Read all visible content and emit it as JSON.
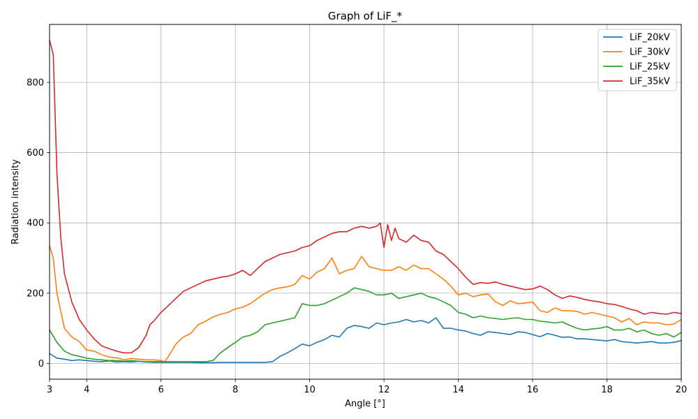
{
  "chart_data": {
    "type": "line",
    "title": "Graph of LiF_*",
    "xlabel": "Angle [°]",
    "ylabel": "Radiation intensity",
    "xlim": [
      3,
      20
    ],
    "ylim": [
      -45,
      965
    ],
    "xticks": [
      4,
      6,
      8,
      10,
      12,
      14,
      16,
      18,
      20
    ],
    "yticks": [
      0,
      200,
      400,
      600,
      800
    ],
    "grid": true,
    "legend_position": "top-right",
    "series": [
      {
        "name": "LiF_20kV",
        "color": "#1f77b4",
        "x": [
          3.0,
          3.2,
          3.4,
          3.6,
          3.8,
          4.0,
          4.2,
          4.4,
          4.6,
          4.8,
          5.0,
          5.2,
          5.4,
          5.6,
          5.8,
          6.0,
          6.2,
          6.4,
          6.6,
          6.8,
          7.0,
          7.2,
          7.4,
          7.6,
          7.8,
          8.0,
          8.2,
          8.4,
          8.6,
          8.8,
          9.0,
          9.2,
          9.4,
          9.6,
          9.8,
          10.0,
          10.2,
          10.4,
          10.6,
          10.8,
          11.0,
          11.2,
          11.4,
          11.6,
          11.8,
          12.0,
          12.2,
          12.4,
          12.6,
          12.8,
          13.0,
          13.2,
          13.4,
          13.6,
          13.8,
          14.0,
          14.2,
          14.4,
          14.6,
          14.8,
          15.0,
          15.2,
          15.4,
          15.6,
          15.8,
          16.0,
          16.2,
          16.4,
          16.6,
          16.8,
          17.0,
          17.2,
          17.4,
          17.6,
          17.8,
          18.0,
          18.2,
          18.4,
          18.6,
          18.8,
          19.0,
          19.2,
          19.4,
          19.6,
          19.8,
          20.0
        ],
        "y": [
          28,
          15,
          12,
          8,
          10,
          8,
          6,
          5,
          7,
          4,
          5,
          4,
          6,
          4,
          3,
          3,
          3,
          3,
          3,
          3,
          2,
          2,
          2,
          3,
          3,
          3,
          3,
          3,
          3,
          3,
          5,
          20,
          30,
          42,
          55,
          50,
          60,
          68,
          80,
          75,
          100,
          108,
          105,
          100,
          115,
          110,
          115,
          118,
          125,
          118,
          122,
          115,
          130,
          100,
          100,
          95,
          92,
          85,
          80,
          90,
          88,
          85,
          82,
          90,
          88,
          82,
          76,
          85,
          80,
          74,
          75,
          70,
          70,
          68,
          66,
          64,
          68,
          62,
          60,
          58,
          60,
          62,
          58,
          58,
          60,
          65
        ]
      },
      {
        "name": "LiF_30kV",
        "color": "#ff7f0e",
        "x": [
          3.0,
          3.1,
          3.2,
          3.4,
          3.6,
          3.8,
          4.0,
          4.2,
          4.4,
          4.6,
          4.8,
          5.0,
          5.2,
          5.4,
          5.6,
          5.8,
          6.0,
          6.1,
          6.2,
          6.4,
          6.6,
          6.8,
          7.0,
          7.2,
          7.4,
          7.6,
          7.8,
          8.0,
          8.2,
          8.4,
          8.6,
          8.8,
          9.0,
          9.2,
          9.4,
          9.6,
          9.8,
          10.0,
          10.2,
          10.4,
          10.6,
          10.8,
          11.0,
          11.2,
          11.4,
          11.6,
          11.8,
          12.0,
          12.2,
          12.4,
          12.6,
          12.8,
          13.0,
          13.2,
          13.4,
          13.6,
          13.8,
          14.0,
          14.2,
          14.4,
          14.6,
          14.8,
          15.0,
          15.2,
          15.4,
          15.6,
          15.8,
          16.0,
          16.2,
          16.4,
          16.6,
          16.8,
          17.0,
          17.2,
          17.4,
          17.6,
          17.8,
          18.0,
          18.2,
          18.4,
          18.6,
          18.8,
          19.0,
          19.2,
          19.4,
          19.6,
          19.8,
          20.0
        ],
        "y": [
          335,
          300,
          200,
          100,
          75,
          62,
          38,
          35,
          25,
          18,
          16,
          10,
          14,
          12,
          10,
          10,
          8,
          5,
          20,
          55,
          75,
          85,
          110,
          120,
          132,
          140,
          145,
          155,
          160,
          170,
          185,
          200,
          210,
          215,
          218,
          225,
          250,
          240,
          260,
          270,
          300,
          255,
          265,
          270,
          305,
          275,
          270,
          265,
          265,
          275,
          265,
          280,
          270,
          270,
          255,
          240,
          220,
          195,
          200,
          190,
          195,
          198,
          175,
          165,
          178,
          170,
          172,
          175,
          150,
          145,
          158,
          150,
          150,
          148,
          140,
          145,
          140,
          135,
          130,
          118,
          128,
          110,
          118,
          115,
          115,
          110,
          112,
          125
        ]
      },
      {
        "name": "LiF_25kV",
        "color": "#2ca02c",
        "x": [
          3.0,
          3.2,
          3.4,
          3.6,
          3.8,
          4.0,
          4.2,
          4.4,
          4.6,
          4.8,
          5.0,
          5.2,
          5.4,
          5.6,
          5.8,
          6.0,
          6.2,
          6.4,
          6.6,
          6.8,
          7.0,
          7.2,
          7.4,
          7.6,
          7.8,
          8.0,
          8.2,
          8.4,
          8.6,
          8.8,
          9.0,
          9.2,
          9.4,
          9.6,
          9.8,
          10.0,
          10.2,
          10.4,
          10.6,
          10.8,
          11.0,
          11.2,
          11.4,
          11.6,
          11.8,
          12.0,
          12.2,
          12.4,
          12.6,
          12.8,
          13.0,
          13.2,
          13.4,
          13.6,
          13.8,
          14.0,
          14.2,
          14.4,
          14.6,
          14.8,
          15.0,
          15.2,
          15.4,
          15.6,
          15.8,
          16.0,
          16.2,
          16.4,
          16.6,
          16.8,
          17.0,
          17.2,
          17.4,
          17.6,
          17.8,
          18.0,
          18.2,
          18.4,
          18.6,
          18.8,
          19.0,
          19.2,
          19.4,
          19.6,
          19.8,
          20.0
        ],
        "y": [
          95,
          60,
          35,
          25,
          20,
          15,
          12,
          10,
          8,
          8,
          6,
          8,
          6,
          5,
          5,
          5,
          5,
          5,
          5,
          5,
          5,
          5,
          8,
          30,
          45,
          60,
          75,
          80,
          90,
          110,
          115,
          120,
          125,
          130,
          170,
          165,
          165,
          170,
          180,
          190,
          200,
          215,
          210,
          205,
          195,
          195,
          200,
          185,
          190,
          195,
          200,
          190,
          185,
          175,
          165,
          145,
          140,
          130,
          135,
          130,
          128,
          125,
          128,
          130,
          125,
          125,
          120,
          118,
          115,
          118,
          108,
          100,
          95,
          98,
          100,
          105,
          95,
          95,
          100,
          90,
          95,
          85,
          80,
          85,
          75,
          88
        ]
      },
      {
        "name": "LiF_35kV",
        "color": "#d62728",
        "x": [
          3.0,
          3.1,
          3.2,
          3.3,
          3.4,
          3.5,
          3.6,
          3.8,
          4.0,
          4.2,
          4.4,
          4.6,
          4.8,
          5.0,
          5.2,
          5.4,
          5.6,
          5.7,
          5.8,
          6.0,
          6.2,
          6.4,
          6.6,
          6.8,
          7.0,
          7.2,
          7.4,
          7.6,
          7.8,
          8.0,
          8.2,
          8.4,
          8.6,
          8.8,
          9.0,
          9.2,
          9.4,
          9.6,
          9.8,
          10.0,
          10.2,
          10.4,
          10.6,
          10.8,
          11.0,
          11.2,
          11.4,
          11.6,
          11.8,
          11.9,
          12.0,
          12.1,
          12.2,
          12.3,
          12.4,
          12.6,
          12.8,
          13.0,
          13.2,
          13.4,
          13.6,
          13.8,
          14.0,
          14.2,
          14.4,
          14.6,
          14.8,
          15.0,
          15.2,
          15.4,
          15.6,
          15.8,
          16.0,
          16.2,
          16.4,
          16.6,
          16.8,
          17.0,
          17.2,
          17.4,
          17.6,
          17.8,
          18.0,
          18.2,
          18.4,
          18.6,
          18.8,
          19.0,
          19.2,
          19.4,
          19.6,
          19.8,
          20.0
        ],
        "y": [
          920,
          880,
          540,
          360,
          255,
          215,
          175,
          125,
          95,
          70,
          50,
          42,
          35,
          30,
          30,
          45,
          80,
          110,
          120,
          145,
          165,
          185,
          205,
          215,
          225,
          235,
          240,
          245,
          248,
          255,
          265,
          250,
          270,
          290,
          300,
          310,
          315,
          320,
          330,
          335,
          350,
          360,
          370,
          375,
          375,
          385,
          390,
          385,
          390,
          400,
          330,
          395,
          350,
          385,
          355,
          345,
          365,
          350,
          345,
          320,
          310,
          290,
          270,
          245,
          225,
          230,
          228,
          232,
          225,
          220,
          215,
          210,
          212,
          220,
          210,
          195,
          185,
          192,
          188,
          182,
          178,
          175,
          170,
          168,
          162,
          155,
          150,
          140,
          145,
          142,
          140,
          145,
          142
        ]
      }
    ]
  }
}
